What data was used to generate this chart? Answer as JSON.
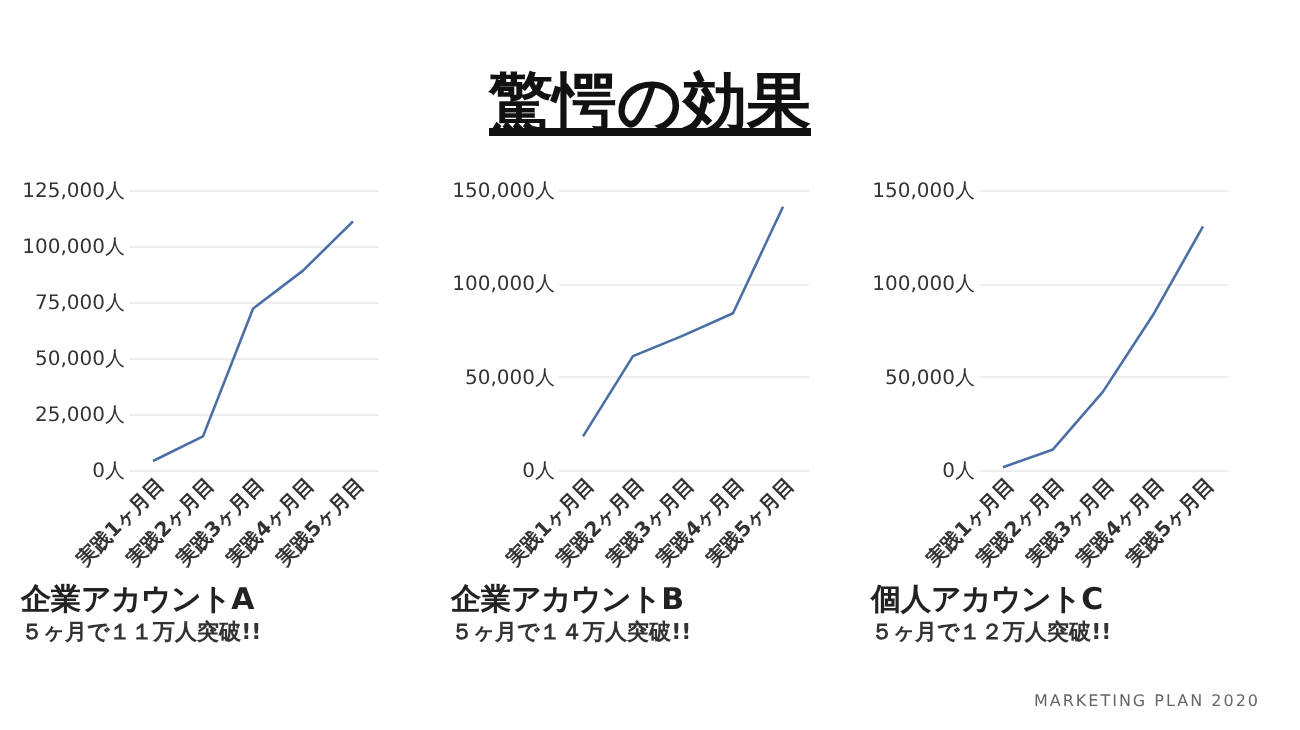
{
  "chart_data": [
    {
      "type": "line",
      "title": "企業アカウントA",
      "subtitle": "５ヶ月で１１万人突破!!",
      "annotations": [
        "驚愕の効果"
      ],
      "categories": [
        "実践1ヶ月目",
        "実践2ヶ月目",
        "実践3ヶ月目",
        "実践4ヶ月目",
        "実践5ヶ月目"
      ],
      "series": [
        {
          "color": "#4a6fa5",
          "values": [
            4000,
            15000,
            72000,
            89000,
            111000
          ]
        }
      ],
      "ylim": [
        0,
        125000
      ],
      "yticks": [
        {
          "value": 0,
          "label": "0人"
        },
        {
          "value": 25000,
          "label": "25,000人"
        },
        {
          "value": 50000,
          "label": "50,000人"
        },
        {
          "value": 75000,
          "label": "75,000人"
        },
        {
          "value": 100000,
          "label": "100,000人"
        },
        {
          "value": 125000,
          "label": "125,000人"
        }
      ],
      "grid": "y"
    },
    {
      "type": "line",
      "title": "企業アカウントB",
      "subtitle": "５ヶ月で１４万人突破!!",
      "categories": [
        "実践1ヶ月目",
        "実践2ヶ月目",
        "実践3ヶ月目",
        "実践4ヶ月目",
        "実践5ヶ月目"
      ],
      "series": [
        {
          "color": "#4a6fa5",
          "values": [
            18000,
            61000,
            72000,
            84000,
            141000
          ]
        }
      ],
      "ylim": [
        0,
        150000
      ],
      "yticks": [
        {
          "value": 0,
          "label": "0人"
        },
        {
          "value": 50000,
          "label": "50,000人"
        },
        {
          "value": 100000,
          "label": "100,000人"
        },
        {
          "value": 150000,
          "label": "150,000人"
        }
      ],
      "grid": "y"
    },
    {
      "type": "line",
      "title": "個人アカウントC",
      "subtitle": "５ヶ月で１２万人突破!!",
      "annotations": [
        "MARKETING PLAN 2020"
      ],
      "categories": [
        "実践1ヶ月目",
        "実践2ヶ月目",
        "実践3ヶ月目",
        "実践4ヶ月目",
        "実践5ヶ月目"
      ],
      "series": [
        {
          "color": "#4a6fa5",
          "values": [
            1500,
            11000,
            42000,
            83000,
            130500
          ]
        }
      ],
      "ylim": [
        0,
        150000
      ],
      "yticks": [
        {
          "value": 0,
          "label": "0人"
        },
        {
          "value": 50000,
          "label": "50,000人"
        },
        {
          "value": 100000,
          "label": "100,000人"
        },
        {
          "value": 150000,
          "label": "150,000人"
        }
      ],
      "grid": "y"
    }
  ]
}
